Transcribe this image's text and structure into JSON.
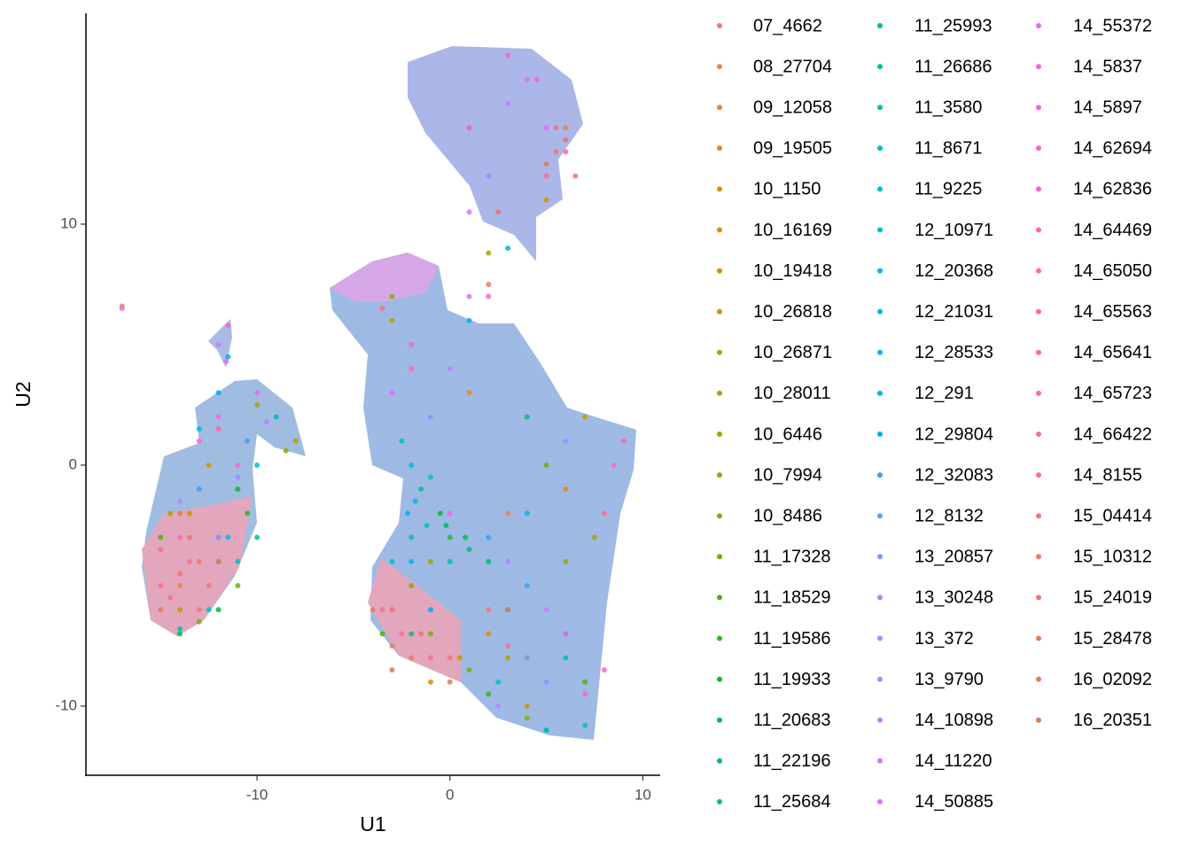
{
  "chart_data": {
    "type": "scatter",
    "x_label": "U1",
    "y_label": "U2",
    "xlim": [
      -18.87,
      10.9
    ],
    "ylim": [
      -12.87,
      18.75
    ],
    "xticks": [
      -10,
      0,
      10
    ],
    "yticks": [
      -10,
      0,
      10
    ],
    "series": [
      {
        "name": "07_4662",
        "color": "#F8766D",
        "x": [
          -13,
          2,
          5.5
        ],
        "y": [
          -4,
          -6,
          13
        ]
      },
      {
        "name": "08_27704",
        "color": "#F37B59",
        "x": [
          -12,
          3,
          -17
        ],
        "y": [
          -3,
          -2,
          6.6
        ]
      },
      {
        "name": "09_12058",
        "color": "#ED8141",
        "x": [
          -14,
          4,
          6
        ],
        "y": [
          -5,
          -8,
          14
        ]
      },
      {
        "name": "09_19505",
        "color": "#E7861B",
        "x": [
          -11,
          1,
          -2
        ],
        "y": [
          -1,
          3,
          5
        ]
      },
      {
        "name": "10_1150",
        "color": "#DE8C00",
        "x": [
          -13.5,
          6,
          2
        ],
        "y": [
          -2,
          -1,
          -7
        ]
      },
      {
        "name": "10_16169",
        "color": "#D89000",
        "x": [
          -12.5,
          -1,
          5
        ],
        "y": [
          0,
          -9,
          11
        ]
      },
      {
        "name": "10_19418",
        "color": "#CF9400",
        "x": [
          -14,
          7,
          -3
        ],
        "y": [
          -6,
          2,
          -6
        ]
      },
      {
        "name": "10_26818",
        "color": "#C49A00",
        "x": [
          -9,
          0.5,
          4
        ],
        "y": [
          2,
          -8,
          -10
        ]
      },
      {
        "name": "10_26871",
        "color": "#B79F00",
        "x": [
          -8,
          -3,
          3
        ],
        "y": [
          1,
          6,
          -8
        ]
      },
      {
        "name": "10_28011",
        "color": "#ABA300",
        "x": [
          -10,
          7.5,
          2
        ],
        "y": [
          2.5,
          -3,
          8.8
        ]
      },
      {
        "name": "10_6446",
        "color": "#9DA700",
        "x": [
          -14.5,
          -1,
          6
        ],
        "y": [
          -2,
          -4,
          -4
        ]
      },
      {
        "name": "10_7994",
        "color": "#8DAB00",
        "x": [
          -8.5,
          -2,
          4
        ],
        "y": [
          0.6,
          -5,
          -10.5
        ]
      },
      {
        "name": "10_8486",
        "color": "#7CAE00",
        "x": [
          -13,
          1,
          -3
        ],
        "y": [
          -6.5,
          -8.5,
          7
        ]
      },
      {
        "name": "11_17328",
        "color": "#68B100",
        "x": [
          -11,
          -1,
          5
        ],
        "y": [
          -5,
          -7,
          0
        ]
      },
      {
        "name": "11_18529",
        "color": "#50B400",
        "x": [
          -15,
          -3.5,
          7
        ],
        "y": [
          -3,
          -7,
          -9
        ]
      },
      {
        "name": "11_19586",
        "color": "#2AB72A",
        "x": [
          -10.5,
          0,
          2
        ],
        "y": [
          -2,
          -3,
          -9.5
        ]
      },
      {
        "name": "11_19933",
        "color": "#00BA38",
        "x": [
          -12,
          -0.5,
          3
        ],
        "y": [
          -6,
          -2,
          -6
        ]
      },
      {
        "name": "11_20683",
        "color": "#00BC50",
        "x": [
          -14,
          0.8,
          5
        ],
        "y": [
          -7,
          -3,
          -11
        ]
      },
      {
        "name": "11_22196",
        "color": "#00BD64",
        "x": [
          -11,
          -0.2,
          2
        ],
        "y": [
          -1,
          -2.5,
          -4
        ]
      },
      {
        "name": "11_25684",
        "color": "#00BF76",
        "x": [
          -12,
          1,
          4
        ],
        "y": [
          -4,
          -3.5,
          2
        ]
      },
      {
        "name": "11_25993",
        "color": "#00C08B",
        "x": [
          -13,
          -1.5,
          -2
        ],
        "y": [
          -1,
          -1,
          -7
        ]
      },
      {
        "name": "11_26686",
        "color": "#00C19C",
        "x": [
          -10,
          0,
          6
        ],
        "y": [
          -3,
          -4,
          -8
        ]
      },
      {
        "name": "11_3580",
        "color": "#00C0AC",
        "x": [
          -14,
          -2,
          3
        ],
        "y": [
          -6.8,
          -3,
          9
        ]
      },
      {
        "name": "11_8671",
        "color": "#00C0BB",
        "x": [
          -11,
          -1.2,
          -3
        ],
        "y": [
          -4,
          -2.5,
          -4
        ]
      },
      {
        "name": "11_9225",
        "color": "#00BFC4",
        "x": [
          -12.5,
          -2.5,
          7
        ],
        "y": [
          -6,
          1,
          -10.8
        ]
      },
      {
        "name": "12_10971",
        "color": "#00BDD0",
        "x": [
          -10,
          -1,
          2.5
        ],
        "y": [
          0,
          -0.5,
          -9
        ]
      },
      {
        "name": "12_20368",
        "color": "#00BADC",
        "x": [
          -13,
          -2,
          5
        ],
        "y": [
          1.5,
          0,
          -11
        ]
      },
      {
        "name": "12_21031",
        "color": "#00B7E8",
        "x": [
          -11.5,
          -1.8,
          4
        ],
        "y": [
          -3,
          -1.5,
          -2
        ]
      },
      {
        "name": "12_28533",
        "color": "#00B4F0",
        "x": [
          -9,
          -2.2,
          1
        ],
        "y": [
          2,
          -2,
          6
        ]
      },
      {
        "name": "12_291",
        "color": "#00B0F6",
        "x": [
          -11.5,
          -2,
          3
        ],
        "y": [
          4.5,
          -4,
          -6
        ]
      },
      {
        "name": "12_29804",
        "color": "#00ABFD",
        "x": [
          -12,
          -1,
          6
        ],
        "y": [
          3,
          -6,
          -7
        ]
      },
      {
        "name": "12_32083",
        "color": "#35A2FF",
        "x": [
          -10.5,
          2,
          4
        ],
        "y": [
          1,
          -3,
          -5
        ]
      },
      {
        "name": "12_8132",
        "color": "#619CFF",
        "x": [
          -13,
          3,
          1
        ],
        "y": [
          -1,
          -6,
          14
        ]
      },
      {
        "name": "13_20857",
        "color": "#7F96FF",
        "x": [
          -12,
          4,
          -1
        ],
        "y": [
          -3,
          -8,
          2
        ]
      },
      {
        "name": "13_30248",
        "color": "#9590FF",
        "x": [
          -11,
          5,
          2
        ],
        "y": [
          -0.5,
          -9,
          12
        ]
      },
      {
        "name": "13_372",
        "color": "#A98AFF",
        "x": [
          -14,
          3,
          6
        ],
        "y": [
          -1.5,
          -4,
          1
        ]
      },
      {
        "name": "13_9790",
        "color": "#B983FF",
        "x": [
          -9.5,
          2.5,
          0
        ],
        "y": [
          1.8,
          -10,
          4
        ]
      },
      {
        "name": "14_10898",
        "color": "#C77CFF",
        "x": [
          -12,
          5,
          3
        ],
        "y": [
          5,
          -6,
          15
        ]
      },
      {
        "name": "14_11220",
        "color": "#D277FF",
        "x": [
          -17,
          -2,
          1
        ],
        "y": [
          6.5,
          5,
          10.5
        ]
      },
      {
        "name": "14_50885",
        "color": "#DC71FA",
        "x": [
          -11.6,
          1,
          4
        ],
        "y": [
          4.3,
          7,
          16
        ]
      },
      {
        "name": "14_55372",
        "color": "#E56BF5",
        "x": [
          -10,
          -3,
          5
        ],
        "y": [
          3,
          3,
          14
        ]
      },
      {
        "name": "14_5837",
        "color": "#F564E3",
        "x": [
          -12,
          0,
          6
        ],
        "y": [
          2,
          -2,
          -7
        ]
      },
      {
        "name": "14_5897",
        "color": "#F962DD",
        "x": [
          -13,
          2,
          8.5
        ],
        "y": [
          1,
          7,
          0
        ]
      },
      {
        "name": "14_62694",
        "color": "#FC61D5",
        "x": [
          -11,
          7,
          4.5
        ],
        "y": [
          0,
          -9.5,
          16
        ]
      },
      {
        "name": "14_62836",
        "color": "#FF61CC",
        "x": [
          -11.5,
          8,
          3
        ],
        "y": [
          5.8,
          -8.5,
          17
        ]
      },
      {
        "name": "14_64469",
        "color": "#FF64B0",
        "x": [
          -12,
          9,
          1
        ],
        "y": [
          1.5,
          1,
          14
        ]
      },
      {
        "name": "14_65050",
        "color": "#FF66A8",
        "x": [
          -14,
          -2,
          8
        ],
        "y": [
          -3,
          4,
          -2
        ]
      },
      {
        "name": "14_65563",
        "color": "#FF689F",
        "x": [
          -15,
          -3,
          5
        ],
        "y": [
          -5,
          -6,
          12
        ]
      },
      {
        "name": "14_65641",
        "color": "#FE6B96",
        "x": [
          -13.5,
          -2.5,
          6
        ],
        "y": [
          -4,
          -7,
          13
        ]
      },
      {
        "name": "14_65723",
        "color": "#FB6D8E",
        "x": [
          -14.5,
          -3.5,
          5.5
        ],
        "y": [
          -5.5,
          -6,
          14
        ]
      },
      {
        "name": "14_66422",
        "color": "#F87086",
        "x": [
          -13,
          -1,
          3
        ],
        "y": [
          -6,
          -8,
          -7.5
        ]
      },
      {
        "name": "14_8155",
        "color": "#F5727E",
        "x": [
          -15,
          0,
          6.5
        ],
        "y": [
          -3.5,
          -8,
          12
        ]
      },
      {
        "name": "15_04414",
        "color": "#F37476",
        "x": [
          -14,
          -3,
          2
        ],
        "y": [
          -4.5,
          -7.5,
          7.5
        ]
      },
      {
        "name": "15_10312",
        "color": "#F27470",
        "x": [
          -12.5,
          -2,
          -3.5
        ],
        "y": [
          -5,
          -8,
          6.5
        ]
      },
      {
        "name": "15_24019",
        "color": "#E8786A",
        "x": [
          -13.5,
          -1.5,
          6
        ],
        "y": [
          -3,
          -7,
          13.5
        ]
      },
      {
        "name": "15_28478",
        "color": "#E27A64",
        "x": [
          -12,
          -4,
          2.5
        ],
        "y": [
          -4,
          -6,
          10.5
        ]
      },
      {
        "name": "16_02092",
        "color": "#DA7C5E",
        "x": [
          -15,
          0,
          5
        ],
        "y": [
          -6,
          -9,
          12.5
        ]
      },
      {
        "name": "16_20351",
        "color": "#D27E58",
        "x": [
          -14,
          -3,
          3
        ],
        "y": [
          -2,
          -8.5,
          -6
        ]
      }
    ]
  }
}
